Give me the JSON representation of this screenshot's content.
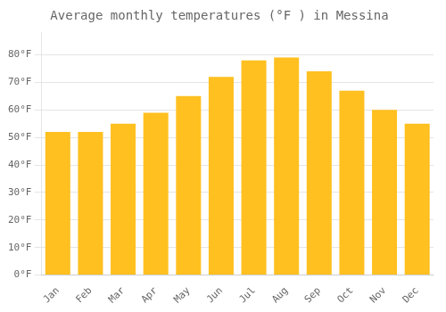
{
  "chart_data": {
    "type": "bar",
    "title": "Average monthly temperatures (°F ) in Messina",
    "categories": [
      "Jan",
      "Feb",
      "Mar",
      "Apr",
      "May",
      "Jun",
      "Jul",
      "Aug",
      "Sep",
      "Oct",
      "Nov",
      "Dec"
    ],
    "values": [
      52,
      52,
      55,
      59,
      65,
      72,
      78,
      79,
      74,
      67,
      60,
      55
    ],
    "color": "#FFC020",
    "ylim": [
      0,
      88
    ],
    "yticks": [
      {
        "value": 0,
        "label": "0°F"
      },
      {
        "value": 10,
        "label": "10°F"
      },
      {
        "value": 20,
        "label": "20°F"
      },
      {
        "value": 30,
        "label": "30°F"
      },
      {
        "value": 40,
        "label": "40°F"
      },
      {
        "value": 50,
        "label": "50°F"
      },
      {
        "value": 60,
        "label": "60°F"
      },
      {
        "value": 70,
        "label": "70°F"
      },
      {
        "value": 80,
        "label": "80°F"
      }
    ],
    "grid": true
  }
}
